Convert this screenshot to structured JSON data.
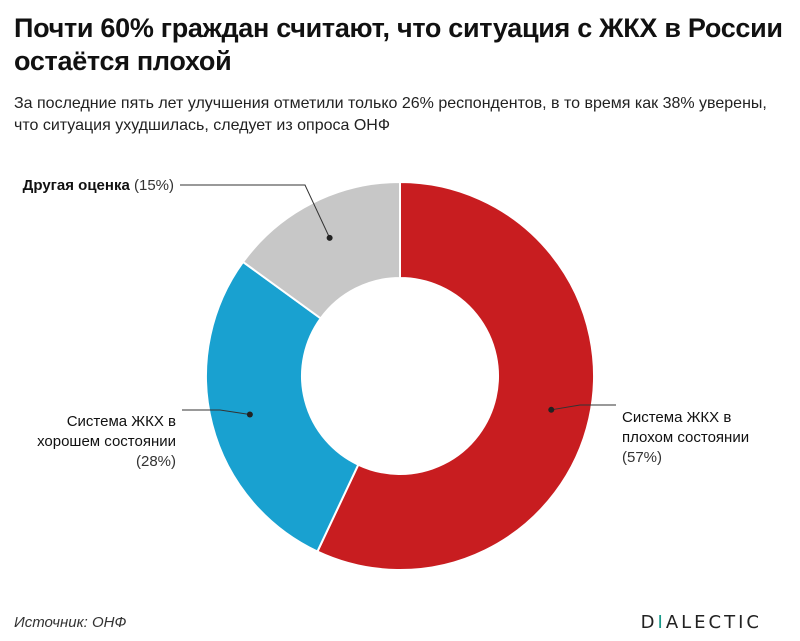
{
  "header": {
    "title": "Почти 60% граждан считают, что ситуация с ЖКХ в России остаётся плохой",
    "subtitle": "За последние пять лет улучшения отметили только 26% респондентов, в то время как 38% уверены, что ситуация ухудшилась, следует из опроса ОНФ"
  },
  "footer": {
    "source": "Источник: ОНФ",
    "brand_prefix": "D",
    "brand_accent": "I",
    "brand_suffix": "ALECTIC"
  },
  "chart_data": {
    "type": "pie",
    "variant": "donut",
    "title": "",
    "slices": [
      {
        "label_lines": [
          "Система ЖКХ в",
          "плохом состоянии"
        ],
        "pct_label": "(57%)",
        "value": 57,
        "color": "#c81d20"
      },
      {
        "label_lines": [
          "Система ЖКХ в",
          "хорошем состоянии"
        ],
        "pct_label": "(28%)",
        "value": 28,
        "color": "#19a1d0"
      },
      {
        "label_lines": [
          "Другая оценка"
        ],
        "pct_label": "(15%)",
        "value": 15,
        "color": "#c7c7c7"
      }
    ],
    "start_angle_deg": 0,
    "direction": "clockwise"
  }
}
